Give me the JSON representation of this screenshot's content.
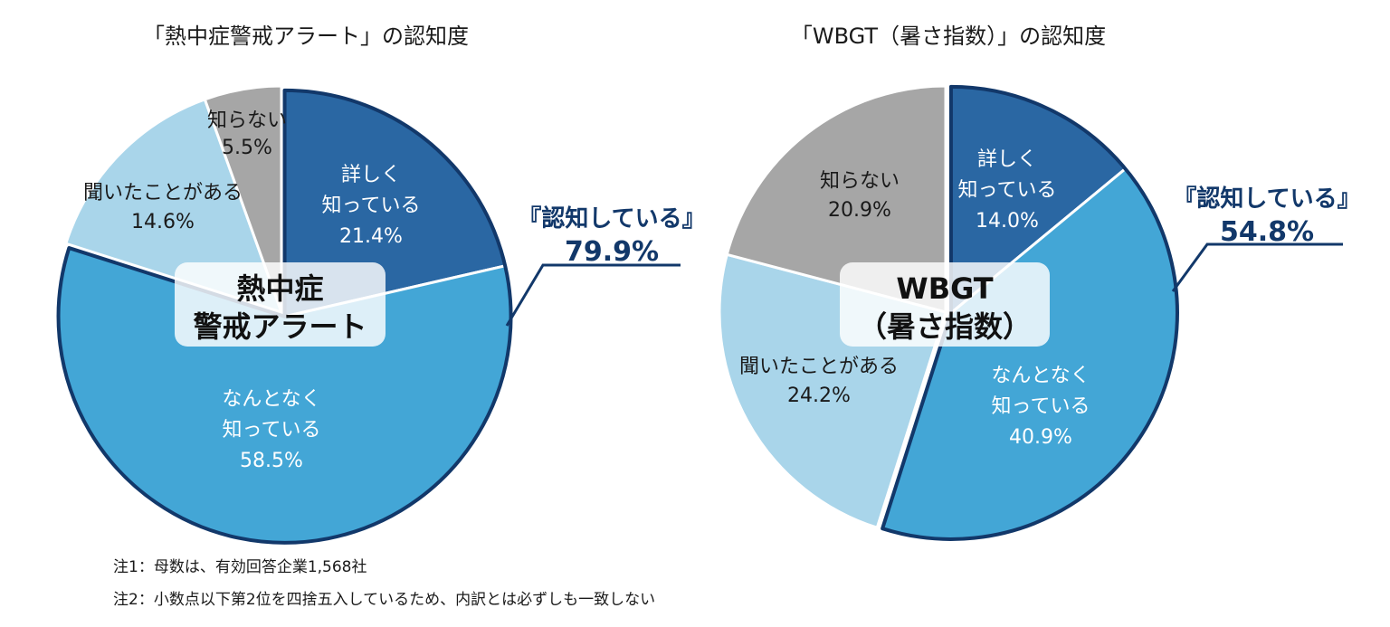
{
  "colors": {
    "detailed": "#2a67a3",
    "vaguely": "#43a6d6",
    "heard": "#a9d5ea",
    "unknown": "#a6a6a6",
    "outline": "#12386a",
    "label_dark_bg": "#ffffff",
    "label_light_bg": "#1a1a1a"
  },
  "chart_data": [
    {
      "type": "pie",
      "title": "「熱中症警戒アラート」の認知度",
      "center_label": [
        "熱中症",
        "警戒アラート"
      ],
      "recognition": {
        "label": "『認知している』",
        "value": "79.9%"
      },
      "slices": [
        {
          "key": "detailed",
          "label": [
            "詳しく",
            "知っている"
          ],
          "value": 21.4,
          "value_label": "21.4%"
        },
        {
          "key": "vaguely",
          "label": [
            "なんとなく",
            "知っている"
          ],
          "value": 58.5,
          "value_label": "58.5%"
        },
        {
          "key": "heard",
          "label": [
            "聞いたことがある"
          ],
          "value": 14.6,
          "value_label": "14.6%"
        },
        {
          "key": "unknown",
          "label": [
            "知らない"
          ],
          "value": 5.5,
          "value_label": "5.5%"
        }
      ]
    },
    {
      "type": "pie",
      "title": "「WBGT（暑さ指数）」の認知度",
      "center_label": [
        "WBGT",
        "（暑さ指数）"
      ],
      "recognition": {
        "label": "『認知している』",
        "value": "54.8%"
      },
      "slices": [
        {
          "key": "detailed",
          "label": [
            "詳しく",
            "知っている"
          ],
          "value": 14.0,
          "value_label": "14.0%"
        },
        {
          "key": "vaguely",
          "label": [
            "なんとなく",
            "知っている"
          ],
          "value": 40.9,
          "value_label": "40.9%"
        },
        {
          "key": "heard",
          "label": [
            "聞いたことがある"
          ],
          "value": 24.2,
          "value_label": "24.2%"
        },
        {
          "key": "unknown",
          "label": [
            "知らない"
          ],
          "value": 20.9,
          "value_label": "20.9%"
        }
      ]
    }
  ],
  "notes": [
    "注1：母数は、有効回答企業1,568社",
    "注2：小数点以下第2位を四捨五入しているため、内訳とは必ずしも一致しない"
  ]
}
